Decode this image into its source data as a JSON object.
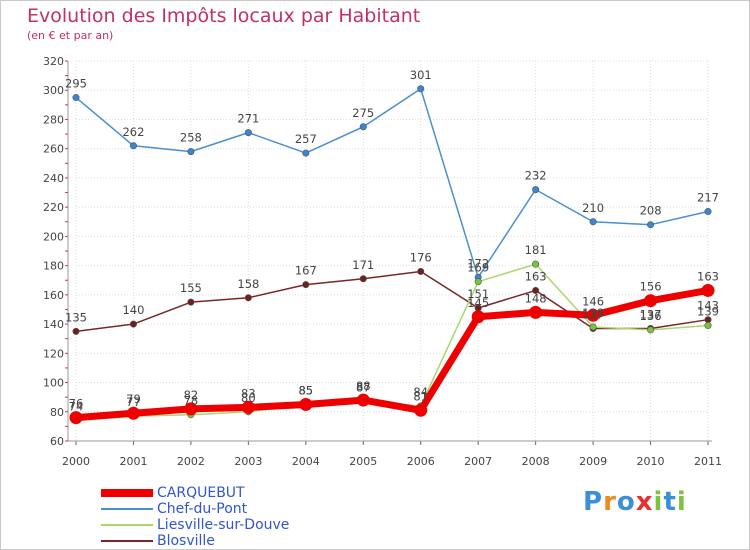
{
  "header": {
    "title": "Evolution des Impôts locaux par Habitant",
    "subtitle": "(en € et par an)"
  },
  "logo": {
    "text": "Proxiti",
    "letters": [
      {
        "ch": "P",
        "color": "#3a8fd8"
      },
      {
        "ch": "r",
        "color": "#f08a1c"
      },
      {
        "ch": "o",
        "color": "#3a8fd8"
      },
      {
        "ch": "x",
        "color": "#e83030"
      },
      {
        "ch": "i",
        "color": "#7fc241"
      },
      {
        "ch": "t",
        "color": "#3a8fd8"
      },
      {
        "ch": "i",
        "color": "#7fc241"
      }
    ]
  },
  "chart_data": {
    "type": "line",
    "title": "Evolution des Impôts locaux par Habitant",
    "subtitle": "(en € et par an)",
    "xlabel": "",
    "ylabel": "",
    "x": [
      "2000",
      "2001",
      "2002",
      "2003",
      "2004",
      "2005",
      "2006",
      "2007",
      "2008",
      "2009",
      "2010",
      "2011"
    ],
    "ylim": [
      60,
      320
    ],
    "yticks": [
      60,
      80,
      100,
      120,
      140,
      160,
      180,
      200,
      220,
      240,
      260,
      280,
      300,
      320
    ],
    "grid": true,
    "legend_position": "bottom-left",
    "series": [
      {
        "name": "Chef-du-Pont",
        "color": "#4a8fd0",
        "marker_fill": "#3a86d6",
        "values": [
          295,
          262,
          258,
          271,
          257,
          275,
          301,
          172,
          232,
          210,
          208,
          217
        ]
      },
      {
        "name": "Blosville",
        "color": "#7a2626",
        "marker_fill": "#6e1f1f",
        "values": [
          135,
          140,
          155,
          158,
          167,
          171,
          176,
          151,
          163,
          137,
          137,
          143
        ]
      },
      {
        "name": "Liesville-sur-Douve",
        "color": "#a8d870",
        "marker_fill": "#77c43a",
        "values": [
          74,
          77,
          78,
          80,
          85,
          87,
          84,
          169,
          181,
          138,
          136,
          139
        ]
      },
      {
        "name": "CARQUEBUT",
        "color": "#ee0000",
        "marker_fill": "#ee0000",
        "values": [
          76,
          79,
          82,
          83,
          85,
          88,
          81,
          145,
          148,
          146,
          156,
          163
        ]
      }
    ],
    "legend": [
      "CARQUEBUT",
      "Chef-du-Pont",
      "Liesville-sur-Douve",
      "Blosville"
    ]
  }
}
